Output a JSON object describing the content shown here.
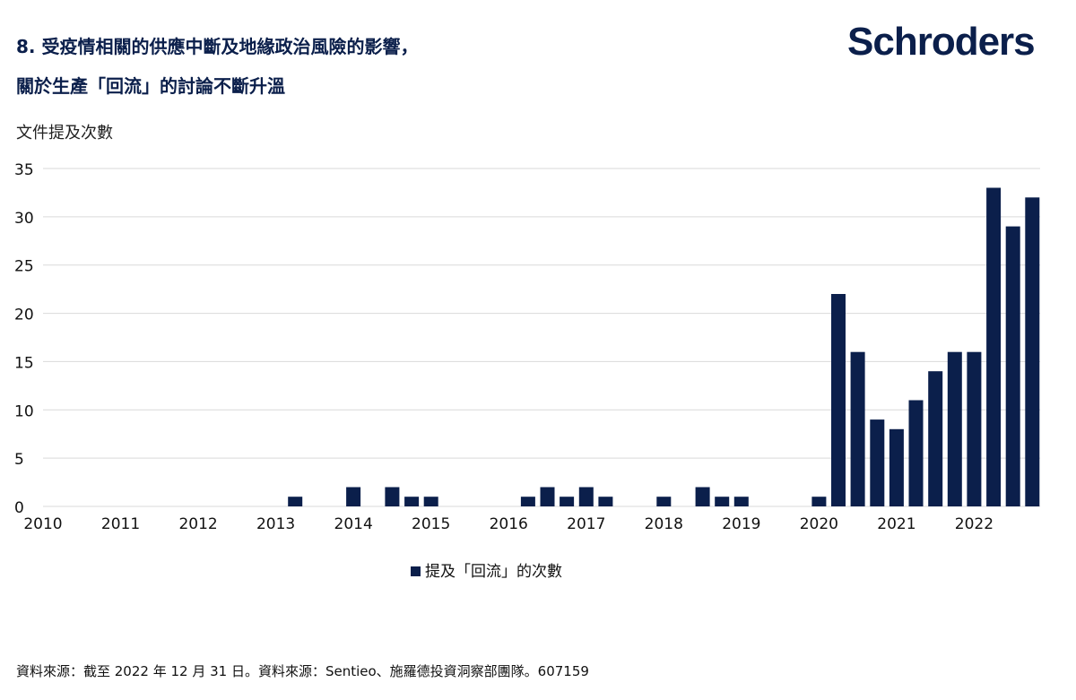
{
  "header": {
    "title_line1": "8. 受疫情相關的供應中斷及地緣政治風險的影響，",
    "title_line2": "關於生產「回流」的討論不斷升溫",
    "logo": "Schroders"
  },
  "footer": {
    "source": "資料來源：截至 2022 年 12 月 31 日。資料來源：Sentieo、施羅德投資洞察部團隊。607159"
  },
  "colors": {
    "bar": "#0b1f4b",
    "grid": "#d9d9d9"
  },
  "chart_data": {
    "type": "bar",
    "ylabel": "文件提及次數",
    "xlabel": "",
    "ylim": [
      0,
      35
    ],
    "yticks": [
      0,
      5,
      10,
      15,
      20,
      25,
      30,
      35
    ],
    "xlim": [
      2010,
      2022.85
    ],
    "xticks": [
      "2010",
      "2011",
      "2012",
      "2013",
      "2014",
      "2015",
      "2016",
      "2017",
      "2018",
      "2019",
      "2020",
      "2021",
      "2022"
    ],
    "grid": true,
    "legend": "bottom-center",
    "series": [
      {
        "name": "提及「回流」的次數",
        "x": [
          2010.0,
          2010.25,
          2010.5,
          2010.75,
          2011.0,
          2011.25,
          2011.5,
          2011.75,
          2012.0,
          2012.25,
          2012.5,
          2012.75,
          2013.0,
          2013.25,
          2013.5,
          2013.75,
          2014.0,
          2014.25,
          2014.5,
          2014.75,
          2015.0,
          2015.25,
          2015.5,
          2015.75,
          2016.25,
          2016.5,
          2016.75,
          2017.0,
          2017.25,
          2017.5,
          2017.75,
          2018.0,
          2018.25,
          2018.5,
          2018.75,
          2019.0,
          2019.25,
          2019.5,
          2019.75,
          2020.0,
          2020.25,
          2020.5,
          2020.75,
          2021.0,
          2021.25,
          2021.5,
          2021.75,
          2022.0,
          2022.25,
          2022.5,
          2022.75
        ],
        "values": [
          0,
          0,
          0,
          0,
          0,
          0,
          0,
          0,
          0,
          0,
          0,
          0,
          0,
          1,
          0,
          0,
          2,
          0,
          2,
          1,
          1,
          0,
          0,
          0,
          1,
          2,
          1,
          2,
          1,
          0,
          0,
          1,
          0,
          2,
          1,
          1,
          0,
          0,
          0,
          1,
          22,
          16,
          9,
          8,
          11,
          14,
          16,
          16,
          33,
          29,
          32
        ]
      }
    ]
  }
}
